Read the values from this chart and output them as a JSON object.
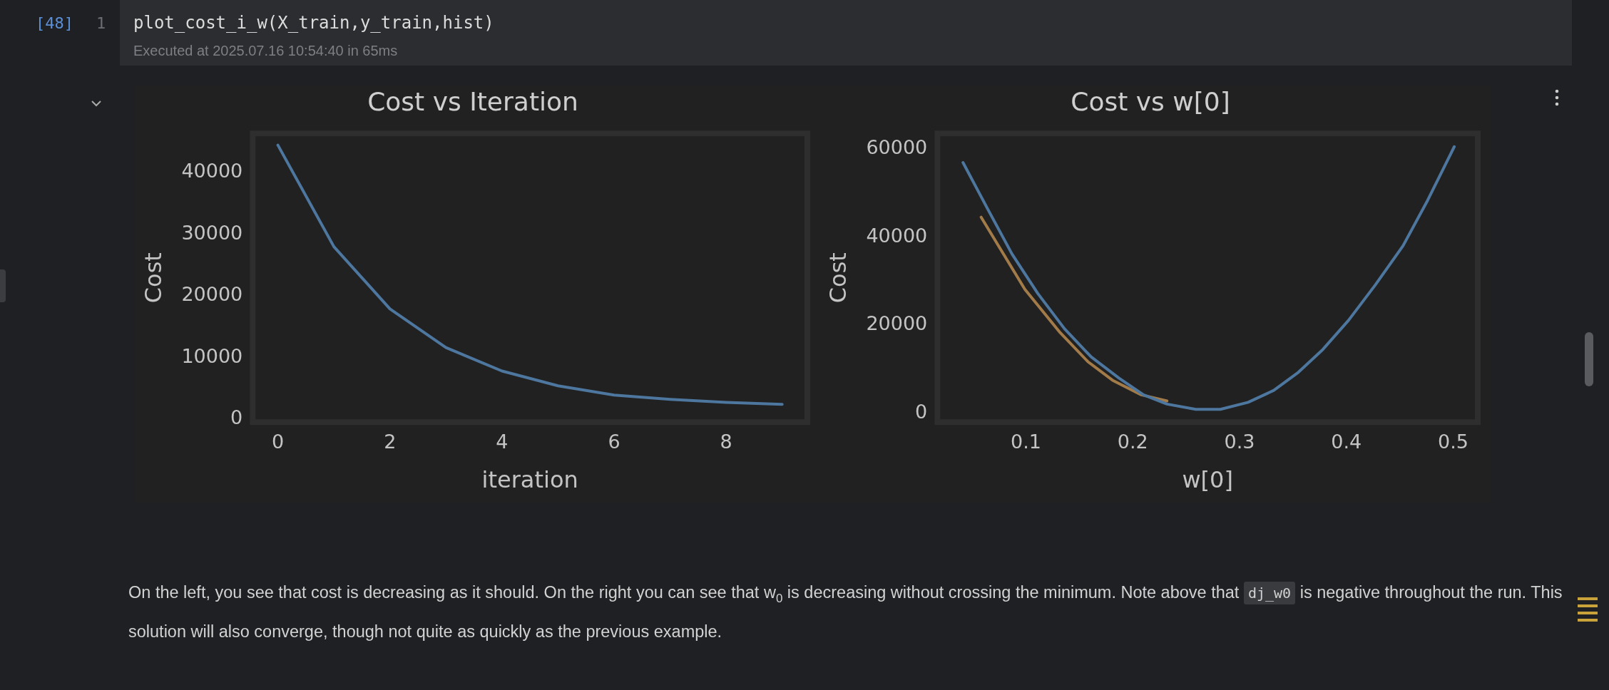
{
  "chart_data": [
    {
      "type": "other",
      "annotations": [
        "[48]",
        "1",
        "plot_cost_i_w(X_train,y_train,hist)",
        "Executed at 2025.07.16 10:54:40 in 65ms"
      ]
    },
    {
      "type": "line",
      "title": "Cost vs Iteration",
      "xlabel": "iteration",
      "ylabel": "Cost",
      "x": [
        0,
        1,
        2,
        3,
        4,
        5,
        6,
        7,
        8,
        9
      ],
      "xlim": [
        -0.45,
        9.45
      ],
      "ylim": [
        -500,
        46400
      ],
      "xticks": [
        0,
        2,
        4,
        6,
        8
      ],
      "yticks": [
        0,
        10000,
        20000,
        30000,
        40000
      ],
      "marker": "none",
      "line_style": "solid",
      "grid": false,
      "series": [
        {
          "color": "#4e77a0",
          "values": [
            44500,
            28000,
            17900,
            11600,
            7800,
            5400,
            3900,
            3200,
            2700,
            2400
          ]
        }
      ]
    },
    {
      "type": "line",
      "title": "Cost vs w[0]",
      "xlabel": "w[0]",
      "ylabel": "Cost",
      "xlim": [
        0.017,
        0.523
      ],
      "ylim": [
        -2000,
        63500
      ],
      "xticks": [
        0.1,
        0.2,
        0.3,
        0.4,
        0.5
      ],
      "yticks": [
        0,
        20000,
        40000,
        60000
      ],
      "marker": "none",
      "line_style": "solid",
      "grid": false,
      "series": [
        {
          "color": "#4e77a0",
          "x": [
            0.041,
            0.064,
            0.087,
            0.111,
            0.136,
            0.161,
            0.187,
            0.21,
            0.232,
            0.259,
            0.282,
            0.308,
            0.332,
            0.355,
            0.378,
            0.402,
            0.427,
            0.453,
            0.476,
            0.501
          ],
          "values": [
            56900,
            46400,
            36100,
            27200,
            19200,
            12800,
            8000,
            4200,
            2100,
            900,
            900,
            2500,
            5200,
            9300,
            14500,
            21100,
            29100,
            38000,
            48300,
            60500
          ]
        },
        {
          "color": "#a27b49",
          "x": [
            0.058,
            0.099,
            0.132,
            0.158,
            0.181,
            0.208,
            0.232
          ],
          "values": [
            44500,
            28100,
            18300,
            11700,
            7500,
            4200,
            2800
          ]
        }
      ]
    },
    {
      "type": "other",
      "annotations": [
        "On the left, you see that cost is decreasing as it should. On the right you can see that w$_{0}$ is decreasing without crossing the minimum. Note above that",
        "dj_w0",
        "is negative throughout the run. This solution will also converge, though not quite as quickly as the previous example."
      ]
    }
  ]
}
